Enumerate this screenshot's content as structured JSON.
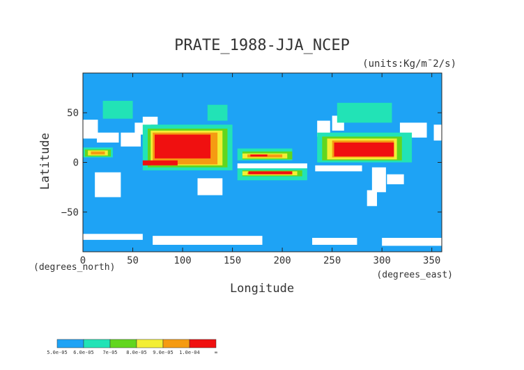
{
  "chart_data": {
    "type": "heatmap",
    "title": "PRATE_1988-JJA_NCEP",
    "units": "(units:Kg/m¯2/s)",
    "xlabel": "Longitude",
    "ylabel": "Latitude",
    "x_unit_label": "(degrees_east)",
    "y_unit_label": "(degrees_north)",
    "xlim": [
      0,
      360
    ],
    "ylim": [
      -90,
      90
    ],
    "xticks": [
      0,
      50,
      100,
      150,
      200,
      250,
      300,
      350
    ],
    "yticks": [
      50,
      0,
      -50
    ],
    "background_color": "#1ea3f5",
    "colorbar": {
      "labels": [
        "5.0e-05",
        "6.0e-05",
        "7e-05",
        "8.0e-05",
        "9.0e-05",
        "1.0e-04",
        "∞"
      ],
      "colors": [
        "#1ea3f5",
        "#22e3b6",
        "#62d61e",
        "#f3ee35",
        "#f59b12",
        "#f01010"
      ]
    },
    "regions": [
      {
        "level": 0,
        "lon": [
          0,
          360
        ],
        "lat": [
          -90,
          90
        ]
      },
      {
        "level": -1,
        "lon": [
          0,
          15
        ],
        "lat": [
          24,
          43
        ]
      },
      {
        "level": -1,
        "lon": [
          14,
          36
        ],
        "lat": [
          20,
          30
        ]
      },
      {
        "level": -1,
        "lon": [
          38,
          58
        ],
        "lat": [
          16,
          30
        ]
      },
      {
        "level": -1,
        "lon": [
          52,
          68
        ],
        "lat": [
          28,
          40
        ]
      },
      {
        "level": -1,
        "lon": [
          60,
          75
        ],
        "lat": [
          38,
          46
        ]
      },
      {
        "level": -1,
        "lon": [
          12,
          38
        ],
        "lat": [
          -35,
          -10
        ]
      },
      {
        "level": -1,
        "lon": [
          115,
          140
        ],
        "lat": [
          -33,
          -16
        ]
      },
      {
        "level": -1,
        "lon": [
          235,
          248
        ],
        "lat": [
          26,
          42
        ]
      },
      {
        "level": -1,
        "lon": [
          250,
          262
        ],
        "lat": [
          32,
          47
        ]
      },
      {
        "level": -1,
        "lon": [
          290,
          304
        ],
        "lat": [
          -30,
          -5
        ]
      },
      {
        "level": -1,
        "lon": [
          285,
          295
        ],
        "lat": [
          -44,
          -28
        ]
      },
      {
        "level": -1,
        "lon": [
          305,
          322
        ],
        "lat": [
          -22,
          -12
        ]
      },
      {
        "level": -1,
        "lon": [
          318,
          345
        ],
        "lat": [
          25,
          40
        ]
      },
      {
        "level": -1,
        "lon": [
          352,
          360
        ],
        "lat": [
          22,
          38
        ]
      },
      {
        "level": -1,
        "lon": [
          155,
          225
        ],
        "lat": [
          -6,
          -1
        ]
      },
      {
        "level": -1,
        "lon": [
          233,
          280
        ],
        "lat": [
          -9,
          -3
        ]
      },
      {
        "level": -1,
        "lon": [
          0,
          60
        ],
        "lat": [
          -78,
          -72
        ]
      },
      {
        "level": -1,
        "lon": [
          70,
          180
        ],
        "lat": [
          -83,
          -74
        ]
      },
      {
        "level": -1,
        "lon": [
          230,
          275
        ],
        "lat": [
          -83,
          -76
        ]
      },
      {
        "level": -1,
        "lon": [
          300,
          360
        ],
        "lat": [
          -84,
          -76
        ]
      },
      {
        "level": 1,
        "lon": [
          20,
          50
        ],
        "lat": [
          44,
          62
        ]
      },
      {
        "level": 1,
        "lon": [
          0,
          30
        ],
        "lat": [
          5,
          15
        ]
      },
      {
        "level": 1,
        "lon": [
          60,
          150
        ],
        "lat": [
          -8,
          38
        ]
      },
      {
        "level": 1,
        "lon": [
          155,
          210
        ],
        "lat": [
          2,
          14
        ]
      },
      {
        "level": 1,
        "lon": [
          155,
          225
        ],
        "lat": [
          -18,
          -6
        ]
      },
      {
        "level": 1,
        "lon": [
          235,
          330
        ],
        "lat": [
          0,
          30
        ]
      },
      {
        "level": 1,
        "lon": [
          125,
          145
        ],
        "lat": [
          42,
          58
        ]
      },
      {
        "level": 1,
        "lon": [
          255,
          310
        ],
        "lat": [
          40,
          60
        ]
      },
      {
        "level": 2,
        "lon": [
          65,
          145
        ],
        "lat": [
          -5,
          34
        ]
      },
      {
        "level": 2,
        "lon": [
          160,
          210
        ],
        "lat": [
          3,
          11
        ]
      },
      {
        "level": 2,
        "lon": [
          160,
          220
        ],
        "lat": [
          -14,
          -8
        ]
      },
      {
        "level": 2,
        "lon": [
          240,
          320
        ],
        "lat": [
          2,
          26
        ]
      },
      {
        "level": 2,
        "lon": [
          2,
          28
        ],
        "lat": [
          6,
          13
        ]
      },
      {
        "level": 3,
        "lon": [
          68,
          140
        ],
        "lat": [
          -3,
          32
        ]
      },
      {
        "level": 3,
        "lon": [
          160,
          205
        ],
        "lat": [
          4,
          9
        ]
      },
      {
        "level": 3,
        "lon": [
          160,
          215
        ],
        "lat": [
          -13,
          -9
        ]
      },
      {
        "level": 3,
        "lon": [
          245,
          315
        ],
        "lat": [
          3,
          24
        ]
      },
      {
        "level": 3,
        "lon": [
          5,
          25
        ],
        "lat": [
          7,
          12
        ]
      },
      {
        "level": 4,
        "lon": [
          70,
          135
        ],
        "lat": [
          -2,
          30
        ]
      },
      {
        "level": 4,
        "lon": [
          165,
          200
        ],
        "lat": [
          5,
          8
        ]
      },
      {
        "level": 4,
        "lon": [
          165,
          210
        ],
        "lat": [
          -12,
          -10
        ]
      },
      {
        "level": 4,
        "lon": [
          250,
          312
        ],
        "lat": [
          5,
          22
        ]
      },
      {
        "level": 4,
        "lon": [
          8,
          22
        ],
        "lat": [
          8,
          11
        ]
      },
      {
        "level": 5,
        "lon": [
          72,
          128
        ],
        "lat": [
          4,
          28
        ]
      },
      {
        "level": 5,
        "lon": [
          60,
          95
        ],
        "lat": [
          -3,
          2
        ]
      },
      {
        "level": 5,
        "lon": [
          166,
          210
        ],
        "lat": [
          -12,
          -9
        ]
      },
      {
        "level": 5,
        "lon": [
          252,
          312
        ],
        "lat": [
          6,
          20
        ]
      },
      {
        "level": 5,
        "lon": [
          168,
          185
        ],
        "lat": [
          6,
          8
        ]
      }
    ]
  }
}
